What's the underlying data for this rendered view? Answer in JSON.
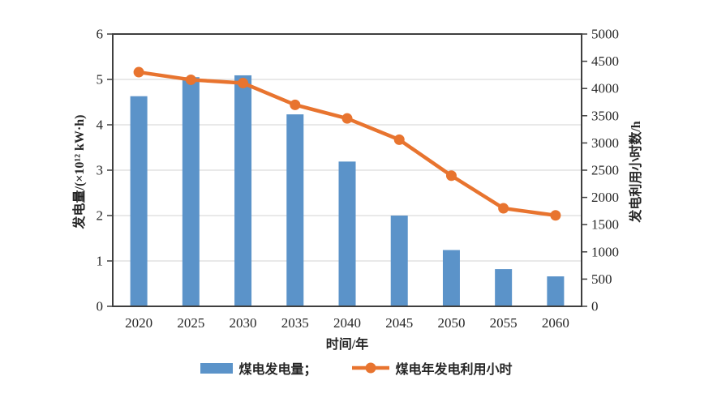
{
  "chart_data": {
    "type": "bar",
    "subtype": "combo-bar-line-dual-axis",
    "categories": [
      "2020",
      "2025",
      "2030",
      "2035",
      "2040",
      "2045",
      "2050",
      "2055",
      "2060"
    ],
    "series": [
      {
        "name": "煤电发电量",
        "type": "bar",
        "axis": "left",
        "values": [
          4.63,
          5.05,
          5.09,
          4.23,
          3.19,
          2.0,
          1.24,
          0.82,
          0.66
        ]
      },
      {
        "name": "煤电年发电利用小时",
        "type": "line",
        "axis": "right",
        "values": [
          4300,
          4160,
          4100,
          3700,
          3450,
          3060,
          2400,
          1800,
          1670
        ]
      }
    ],
    "title": "",
    "xlabel": "时间/年",
    "left_axis": {
      "label": "发电量/(×10¹² kW·h)",
      "min": 0,
      "max": 6,
      "ticks": [
        0,
        1,
        2,
        3,
        4,
        5,
        6
      ]
    },
    "right_axis": {
      "label": "发电利用小时数/h",
      "min": 0,
      "max": 5000,
      "ticks": [
        0,
        500,
        1000,
        1500,
        2000,
        2500,
        3000,
        3500,
        4000,
        4500,
        5000
      ]
    },
    "grid": "horizontal gridlines at left-axis integers 1-5",
    "legend_position": "bottom-center"
  },
  "axes": {
    "left_title": "发电量/(×10¹² kW·h)",
    "right_title": "发电利用小时数/h",
    "x_title": "时间/年"
  },
  "legend": {
    "bar_label": "煤电发电量；",
    "line_label": "煤电年发电利用小时"
  },
  "icons": {
    "bar_swatch": "blue-rectangle-swatch",
    "line_swatch": "orange-line-with-dot-marker"
  },
  "colors": {
    "bar": "#5B93C9",
    "line": "#E8742F",
    "axis": "#3F3F3F",
    "grid": "#DCDCDC",
    "text": "#262626",
    "background": "#FFFFFF"
  }
}
